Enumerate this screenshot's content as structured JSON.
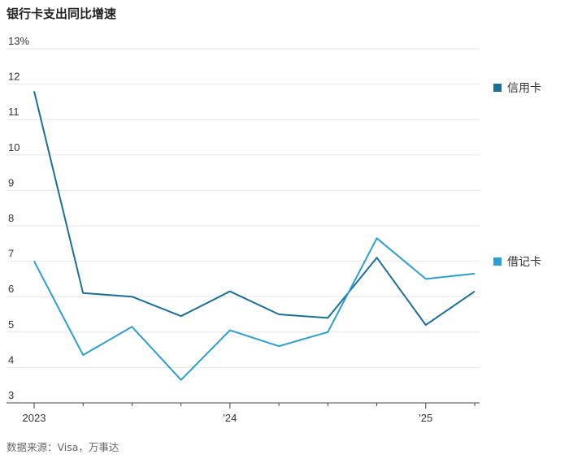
{
  "chart_data": {
    "type": "line",
    "title": "银行卡支出同比增速",
    "source": "数据来源：Visa，万事达",
    "x": [
      "2023 Q1",
      "2023 Q2",
      "2023 Q3",
      "2023 Q4",
      "2024 Q1",
      "2024 Q2",
      "2024 Q3",
      "2024 Q4",
      "2025 Q1",
      "2025 Q2"
    ],
    "x_tick_labels": [
      "2023",
      "'24",
      "'25"
    ],
    "y_tick_labels": [
      "13%",
      "12",
      "11",
      "10",
      "9",
      "8",
      "7",
      "6",
      "5",
      "4",
      "3"
    ],
    "ylim": [
      3,
      13
    ],
    "grid": true,
    "legend_position": "right",
    "series": [
      {
        "name": "信用卡",
        "color": "#1a6f9a",
        "values": [
          11.8,
          6.1,
          6.0,
          5.45,
          6.15,
          5.5,
          5.4,
          7.1,
          5.2,
          6.15
        ]
      },
      {
        "name": "借记卡",
        "color": "#2a9fd6",
        "values": [
          7.0,
          4.35,
          5.15,
          3.65,
          5.05,
          4.6,
          5.0,
          7.65,
          6.5,
          6.65
        ]
      }
    ]
  }
}
